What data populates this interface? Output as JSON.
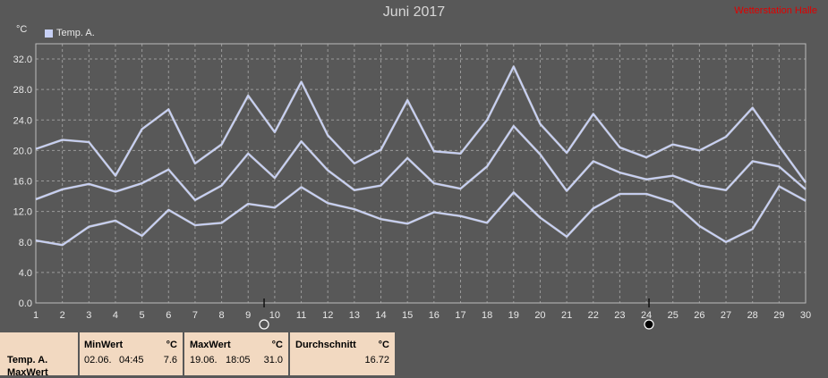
{
  "colors": {
    "background": "#585858",
    "grid": "#9a9a9a",
    "series": "#c7d0f5",
    "axis": "#bbbbbb",
    "stats_bg": "#f2d9c1",
    "station": "#e00000"
  },
  "header": {
    "title": "Juni 2017",
    "station": "Wetterstation Halle",
    "unit": "°C"
  },
  "chart_data": {
    "type": "line",
    "title": "Juni 2017",
    "xlabel": "",
    "ylabel": "°C",
    "x": [
      1,
      2,
      3,
      4,
      5,
      6,
      7,
      8,
      9,
      10,
      11,
      12,
      13,
      14,
      15,
      16,
      17,
      18,
      19,
      20,
      21,
      22,
      23,
      24,
      25,
      26,
      27,
      28,
      29,
      30
    ],
    "ylim": [
      0,
      34
    ],
    "yticks": [
      "0.0",
      "4.0",
      "8.0",
      "12.0",
      "16.0",
      "20.0",
      "24.0",
      "28.0",
      "32.0"
    ],
    "legend": [
      "Temp. A."
    ],
    "legend_position": "top-left",
    "grid": true,
    "series": [
      {
        "role": "max",
        "values": [
          20.2,
          21.4,
          21.1,
          16.7,
          22.8,
          25.4,
          18.3,
          20.8,
          27.2,
          22.4,
          29.0,
          22.0,
          18.3,
          20.1,
          26.6,
          19.9,
          19.6,
          24.0,
          31.0,
          23.5,
          19.7,
          24.8,
          20.4,
          19.1,
          20.8,
          20.0,
          21.8,
          25.6,
          20.6,
          15.8
        ]
      },
      {
        "role": "avg",
        "values": [
          13.6,
          14.9,
          15.6,
          14.6,
          15.7,
          17.5,
          13.5,
          15.4,
          19.6,
          16.4,
          21.2,
          17.4,
          14.8,
          15.4,
          19.0,
          15.7,
          15.0,
          17.9,
          23.2,
          19.5,
          14.7,
          18.6,
          17.1,
          16.2,
          16.7,
          15.4,
          14.8,
          18.6,
          17.9,
          14.9
        ]
      },
      {
        "role": "min",
        "values": [
          8.2,
          7.6,
          10.0,
          10.8,
          8.8,
          12.2,
          10.2,
          10.5,
          13.0,
          12.5,
          15.2,
          13.1,
          12.3,
          11.0,
          10.4,
          11.9,
          11.4,
          10.5,
          14.5,
          11.2,
          8.7,
          12.4,
          14.3,
          14.3,
          13.2,
          10.1,
          8.0,
          9.7,
          15.3,
          13.4
        ]
      }
    ],
    "markers": [
      {
        "day": 9.6,
        "label": "min-marker"
      },
      {
        "day": 24.1,
        "label": "max-marker"
      }
    ]
  },
  "stats": {
    "series_label": "Temp. A.",
    "row_label": "MaxWert",
    "min": {
      "header": "MinWert",
      "unit": "°C",
      "date": "02.06.",
      "time": "04:45",
      "value": "7.6"
    },
    "max": {
      "header": "MaxWert",
      "unit": "°C",
      "date": "19.06.",
      "time": "18:05",
      "value": "31.0"
    },
    "avg": {
      "header": "Durchschnitt",
      "unit": "°C",
      "value": "16.72"
    }
  }
}
